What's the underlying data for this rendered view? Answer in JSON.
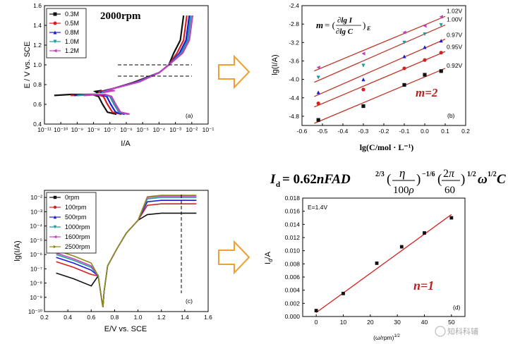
{
  "chart_data": [
    {
      "id": "a",
      "type": "line",
      "panel_label": "(a)",
      "annotation": "2000rpm",
      "xlabel": "I/A",
      "ylabel": "E / V vs. SCE",
      "xlim": [
        -11,
        -1
      ],
      "ylim": [
        0.4,
        1.6
      ],
      "x_tick_labels": [
        "10⁻¹¹",
        "10⁻¹⁰",
        "10⁻⁹",
        "10⁻⁸",
        "10⁻⁷",
        "10⁻⁶",
        "10⁻⁵",
        "10⁻⁴",
        "10⁻³",
        "10⁻²",
        "10⁻¹"
      ],
      "y_tick_labels": [
        "0.4",
        "0.6",
        "0.8",
        "1.0",
        "1.2",
        "1.4",
        "1.6"
      ],
      "reference_lines": [
        1.01,
        0.91
      ],
      "series": [
        {
          "name": "0.3M",
          "color": "#111111",
          "marker": "square"
        },
        {
          "name": "0.5M",
          "color": "#d62020",
          "marker": "circle"
        },
        {
          "name": "0.8M",
          "color": "#1a1ad6",
          "marker": "triangle-up"
        },
        {
          "name": "1.0M",
          "color": "#1f9a9a",
          "marker": "triangle-down"
        },
        {
          "name": "1.2M",
          "color": "#c040c0",
          "marker": "triangle-left"
        }
      ]
    },
    {
      "id": "b",
      "type": "scatter",
      "panel_label": "(b)",
      "annotation": "m=2",
      "xlabel": "lg(C/mol · L⁻¹)",
      "ylabel": "lg(I/A)",
      "xlim": [
        -0.6,
        0.2
      ],
      "ylim": [
        -5.0,
        -2.4
      ],
      "x_ticks": [
        -0.6,
        -0.5,
        -0.4,
        -0.3,
        -0.2,
        -0.1,
        0.0,
        0.1,
        0.2
      ],
      "y_ticks": [
        -4.8,
        -4.4,
        -4.0,
        -3.6,
        -3.2,
        -2.8,
        -2.4
      ],
      "formula": "m = (∂lg I / ∂lg C)_E",
      "x": [
        -0.52,
        -0.3,
        -0.1,
        0.0,
        0.08
      ],
      "series": [
        {
          "name": "0.92V",
          "color": "#111111",
          "marker": "square",
          "values": [
            -4.88,
            -4.58,
            -4.12,
            -3.9,
            -3.82
          ]
        },
        {
          "name": "0.95V",
          "color": "#d62020",
          "marker": "circle",
          "values": [
            -4.52,
            -4.22,
            -3.76,
            -3.58,
            -3.42
          ]
        },
        {
          "name": "0.97V",
          "color": "#1a1ad6",
          "marker": "triangle-up",
          "values": [
            -4.28,
            -4.0,
            -3.5,
            -3.3,
            -3.16
          ]
        },
        {
          "name": "1.00V",
          "color": "#1f9a9a",
          "marker": "triangle-down",
          "values": [
            -3.96,
            -3.7,
            -3.2,
            -3.02,
            -2.82
          ]
        },
        {
          "name": "1.02V",
          "color": "#c040c0",
          "marker": "triangle-left",
          "values": [
            -3.74,
            -3.44,
            -2.98,
            -2.84,
            -2.64
          ]
        }
      ]
    },
    {
      "id": "c",
      "type": "line",
      "panel_label": "(c)",
      "xlabel": "E/V vs. SCE",
      "ylabel": "lg(I/A)",
      "xlim": [
        0.2,
        1.6
      ],
      "ylim": [
        -10,
        -1.5
      ],
      "x_ticks": [
        0.2,
        0.4,
        0.6,
        0.8,
        1.0,
        1.2,
        1.4,
        1.6
      ],
      "y_tick_labels": [
        "10⁻¹⁰",
        "10⁻⁹",
        "10⁻⁸",
        "10⁻⁷",
        "10⁻⁶",
        "10⁻⁵",
        "10⁻⁴",
        "10⁻³",
        "10⁻²"
      ],
      "reference_lines": [
        1.36
      ],
      "series": [
        {
          "name": "0rpm",
          "color": "#111111",
          "marker": "square"
        },
        {
          "name": "100rpm",
          "color": "#d62020",
          "marker": "circle"
        },
        {
          "name": "500rpm",
          "color": "#1a1ad6",
          "marker": "triangle-up"
        },
        {
          "name": "1000rpm",
          "color": "#1f9a9a",
          "marker": "triangle-down"
        },
        {
          "name": "1600rpm",
          "color": "#c040c0",
          "marker": "triangle-left"
        },
        {
          "name": "2500rpm",
          "color": "#8c8c1a",
          "marker": "triangle-right"
        }
      ]
    },
    {
      "id": "d",
      "type": "scatter",
      "panel_label": "(d)",
      "annotation": "n=1",
      "condition": "E=1.4V",
      "xlabel": "(ω/rpm)^1/2",
      "ylabel": "I_d/A",
      "xlim": [
        -5,
        55
      ],
      "ylim": [
        0,
        0.018
      ],
      "x_ticks": [
        0,
        10,
        20,
        30,
        40,
        50
      ],
      "y_ticks": [
        0.0,
        0.002,
        0.004,
        0.006,
        0.008,
        0.01,
        0.012,
        0.014,
        0.016,
        0.018
      ],
      "formula": "I_d = 0.62nFAD^2/3 (η/100ρ)^-1/6 (2π/60)^1/2 ω^1/2 C",
      "x": [
        0,
        10,
        22.4,
        31.6,
        40,
        50
      ],
      "values": [
        0.0009,
        0.0035,
        0.0081,
        0.0106,
        0.0127,
        0.015
      ],
      "fit": {
        "x": [
          0,
          50
        ],
        "y": [
          0.0006,
          0.0155
        ]
      }
    }
  ],
  "watermark": "知科科辅"
}
